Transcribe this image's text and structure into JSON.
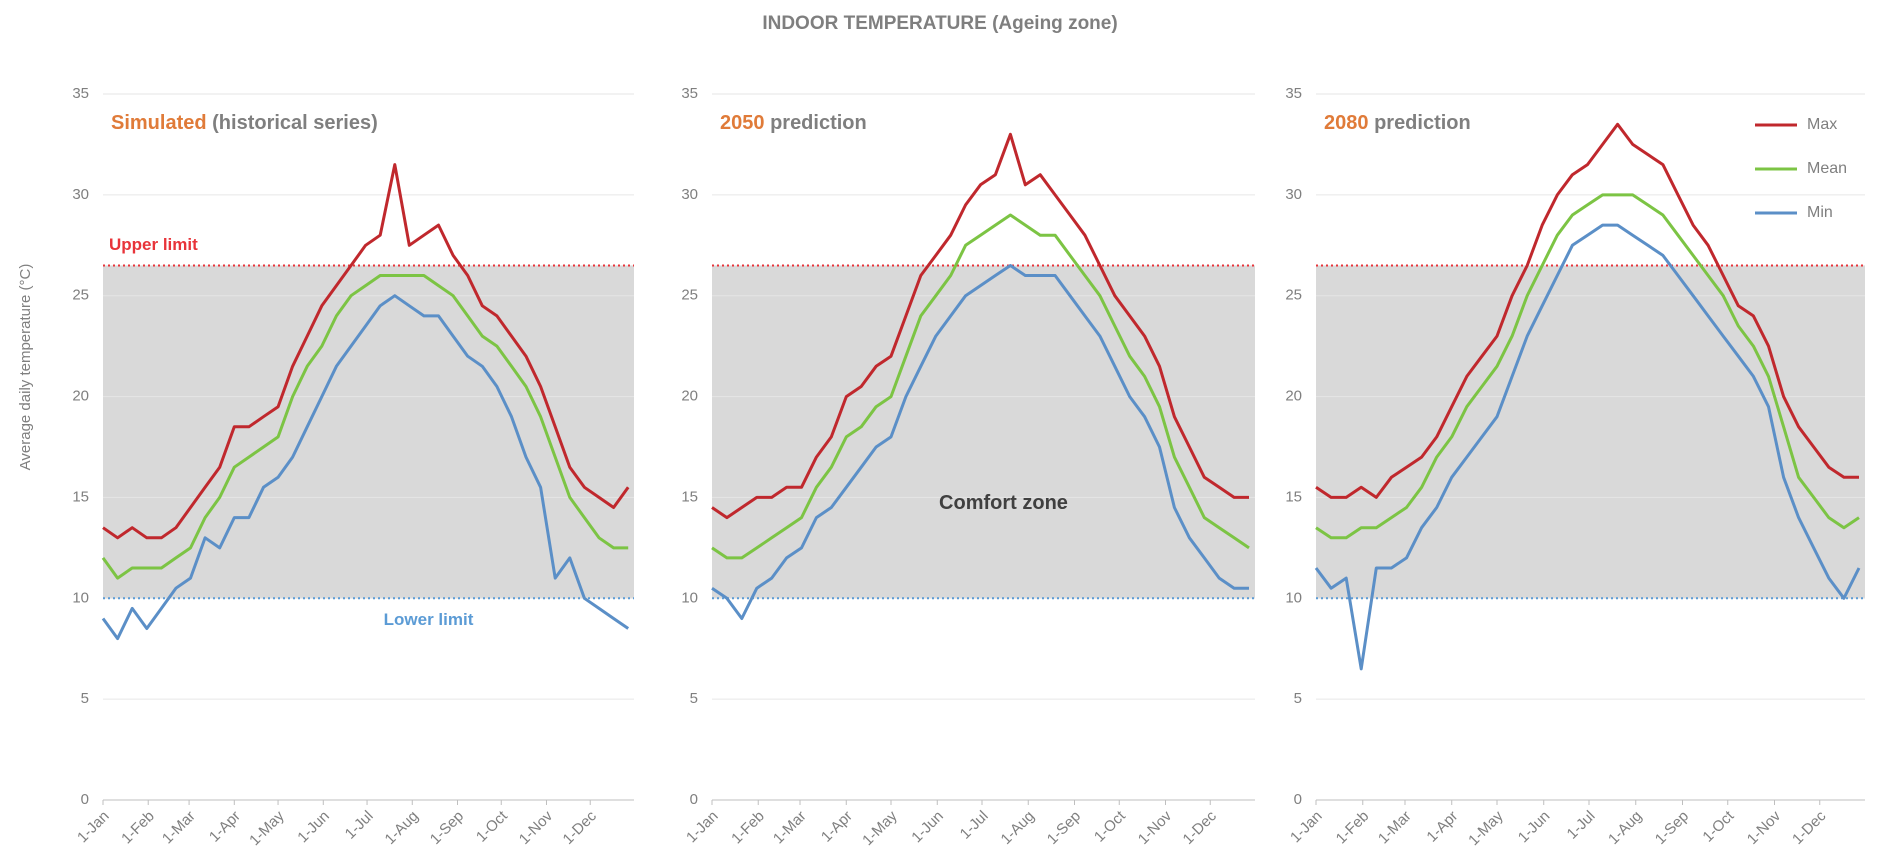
{
  "title": "INDOOR TEMPERATURE (Ageing zone)",
  "axes": {
    "x": [
      1,
      11,
      21,
      31,
      41,
      51,
      61,
      71,
      81,
      91,
      101,
      111,
      121,
      131,
      141,
      151,
      161,
      171,
      181,
      191,
      201,
      211,
      221,
      231,
      241,
      251,
      261,
      271,
      281,
      291,
      301,
      311,
      321,
      331,
      341,
      351,
      361
    ],
    "xlim": [
      1,
      365
    ],
    "xticks": [
      {
        "value": 1,
        "label": "1-Jan"
      },
      {
        "value": 32,
        "label": "1-Feb"
      },
      {
        "value": 60,
        "label": "1-Mar"
      },
      {
        "value": 91,
        "label": "1-Apr"
      },
      {
        "value": 121,
        "label": "1-May"
      },
      {
        "value": 152,
        "label": "1-Jun"
      },
      {
        "value": 182,
        "label": "1-Jul"
      },
      {
        "value": 213,
        "label": "1-Aug"
      },
      {
        "value": 244,
        "label": "1-Sep"
      },
      {
        "value": 274,
        "label": "1-Oct"
      },
      {
        "value": 305,
        "label": "1-Nov"
      },
      {
        "value": 335,
        "label": "1-Dec"
      }
    ],
    "ylim": [
      0,
      35
    ],
    "yticks": [
      0,
      5,
      10,
      15,
      20,
      25,
      30,
      35
    ],
    "grid": true,
    "comfort_zone": {
      "lower": 10,
      "upper": 26.5,
      "fill": "#d9d9d9",
      "upper_color": "#e8343a",
      "lower_color": "#5b9bd5"
    }
  },
  "chart_data": [
    {
      "type": "line",
      "subtitle_highlight": "Simulated",
      "subtitle": "(historical series)",
      "ylabel": "Average daily temperature (°C)",
      "upper_label": "Upper limit",
      "lower_label": "Lower limit",
      "series": [
        {
          "color": "#c0282d",
          "values": [
            13.5,
            13,
            13.5,
            13,
            13,
            13.5,
            14.5,
            15.5,
            16.5,
            18.5,
            18.5,
            19,
            19.5,
            21.5,
            23,
            24.5,
            25.5,
            26.5,
            27.5,
            28,
            31.5,
            27.5,
            28,
            28.5,
            27,
            26,
            24.5,
            24,
            23,
            22,
            20.5,
            18.5,
            16.5,
            15.5,
            15,
            14.5,
            15.5
          ]
        },
        {
          "color": "#7cc444",
          "values": [
            12,
            11,
            11.5,
            11.5,
            11.5,
            12,
            12.5,
            14,
            15,
            16.5,
            17,
            17.5,
            18,
            20,
            21.5,
            22.5,
            24,
            25,
            25.5,
            26,
            26,
            26,
            26,
            25.5,
            25,
            24,
            23,
            22.5,
            21.5,
            20.5,
            19,
            17,
            15,
            14,
            13,
            12.5,
            12.5
          ]
        },
        {
          "color": "#5b8fc7",
          "values": [
            9,
            8,
            9.5,
            8.5,
            9.5,
            10.5,
            11,
            13,
            12.5,
            14,
            14,
            15.5,
            16,
            17,
            18.5,
            20,
            21.5,
            22.5,
            23.5,
            24.5,
            25,
            24.5,
            24,
            24,
            23,
            22,
            21.5,
            20.5,
            19,
            17,
            15.5,
            11,
            12,
            10,
            9.5,
            9,
            8.5
          ]
        }
      ]
    },
    {
      "type": "line",
      "subtitle_highlight": "2050",
      "subtitle": "prediction",
      "zone_label": "Comfort zone",
      "series": [
        {
          "color": "#c0282d",
          "values": [
            14.5,
            14,
            14.5,
            15,
            15,
            15.5,
            15.5,
            17,
            18,
            20,
            20.5,
            21.5,
            22,
            24,
            26,
            27,
            28,
            29.5,
            30.5,
            31,
            33,
            30.5,
            31,
            30,
            29,
            28,
            26.5,
            25,
            24,
            23,
            21.5,
            19,
            17.5,
            16,
            15.5,
            15,
            15
          ]
        },
        {
          "color": "#7cc444",
          "values": [
            12.5,
            12,
            12,
            12.5,
            13,
            13.5,
            14,
            15.5,
            16.5,
            18,
            18.5,
            19.5,
            20,
            22,
            24,
            25,
            26,
            27.5,
            28,
            28.5,
            29,
            28.5,
            28,
            28,
            27,
            26,
            25,
            23.5,
            22,
            21,
            19.5,
            17,
            15.5,
            14,
            13.5,
            13,
            12.5
          ]
        },
        {
          "color": "#5b8fc7",
          "values": [
            10.5,
            10,
            9,
            10.5,
            11,
            12,
            12.5,
            14,
            14.5,
            15.5,
            16.5,
            17.5,
            18,
            20,
            21.5,
            23,
            24,
            25,
            25.5,
            26,
            26.5,
            26,
            26,
            26,
            25,
            24,
            23,
            21.5,
            20,
            19,
            17.5,
            14.5,
            13,
            12,
            11,
            10.5,
            10.5
          ]
        }
      ]
    },
    {
      "type": "line",
      "subtitle_highlight": "2080",
      "subtitle": "prediction",
      "legend": "upper right",
      "series": [
        {
          "name": "Max",
          "color": "#c0282d",
          "values": [
            15.5,
            15,
            15,
            15.5,
            15,
            16,
            16.5,
            17,
            18,
            19.5,
            21,
            22,
            23,
            25,
            26.5,
            28.5,
            30,
            31,
            31.5,
            32.5,
            33.5,
            32.5,
            32,
            31.5,
            30,
            28.5,
            27.5,
            26,
            24.5,
            24,
            22.5,
            20,
            18.5,
            17.5,
            16.5,
            16,
            16
          ]
        },
        {
          "name": "Mean",
          "color": "#7cc444",
          "values": [
            13.5,
            13,
            13,
            13.5,
            13.5,
            14,
            14.5,
            15.5,
            17,
            18,
            19.5,
            20.5,
            21.5,
            23,
            25,
            26.5,
            28,
            29,
            29.5,
            30,
            30,
            30,
            29.5,
            29,
            28,
            27,
            26,
            25,
            23.5,
            22.5,
            21,
            18.5,
            16,
            15,
            14,
            13.5,
            14
          ]
        },
        {
          "name": "Min",
          "color": "#5b8fc7",
          "values": [
            11.5,
            10.5,
            11,
            6.5,
            11.5,
            11.5,
            12,
            13.5,
            14.5,
            16,
            17,
            18,
            19,
            21,
            23,
            24.5,
            26,
            27.5,
            28,
            28.5,
            28.5,
            28,
            27.5,
            27,
            26,
            25,
            24,
            23,
            22,
            21,
            19.5,
            16,
            14,
            12.5,
            11,
            10,
            11.5
          ]
        }
      ]
    }
  ]
}
